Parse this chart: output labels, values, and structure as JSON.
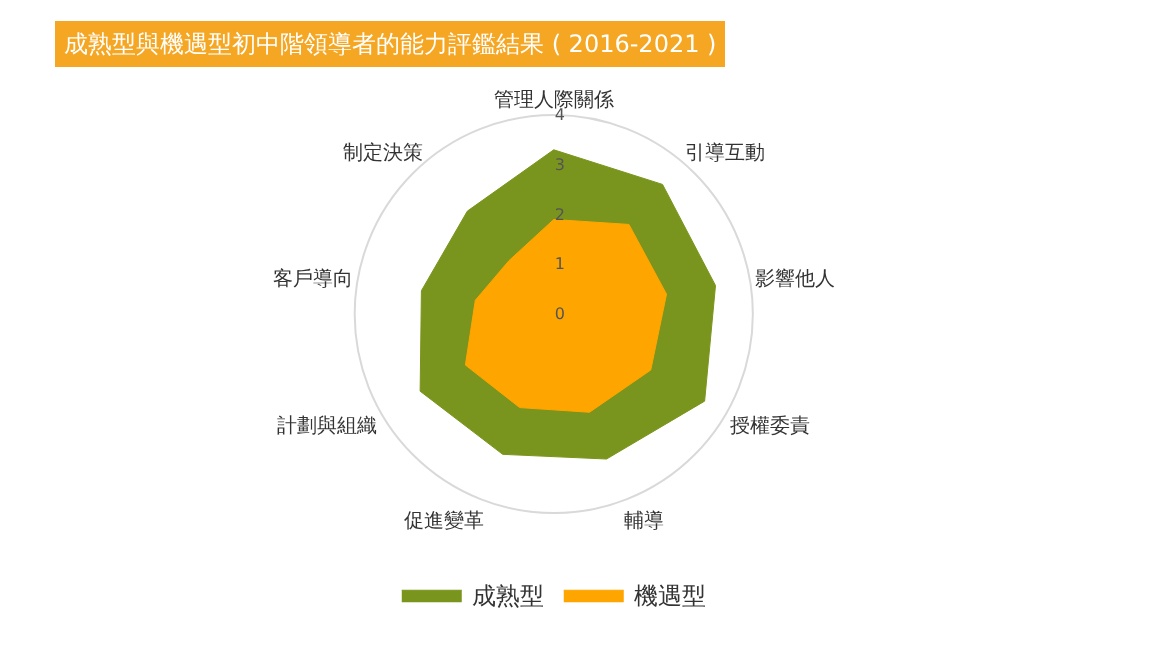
{
  "chart_data": {
    "type": "radar",
    "title": "成熟型與機遇型初中階領導者的能力評鑑結果 ( 2016-2021 )",
    "categories": [
      "管理人際關係",
      "引導互動",
      "影響他人",
      "授權委責",
      "輔導",
      "促進變革",
      "計劃與組織",
      "客戶導向",
      "制定決策"
    ],
    "series": [
      {
        "name": "成熟型",
        "color": "#7a951d",
        "values": [
          3.3,
          3.4,
          3.3,
          3.5,
          3.1,
          3.0,
          3.1,
          2.7,
          2.7
        ]
      },
      {
        "name": "機遇型",
        "color": "#ffa500",
        "values": [
          1.9,
          2.35,
          2.3,
          2.25,
          2.1,
          2.0,
          2.05,
          1.6,
          1.4
        ]
      }
    ],
    "ylim": [
      0,
      4
    ],
    "yticks": [
      0,
      1,
      2,
      3,
      4
    ],
    "grid": false,
    "legend": "bottom",
    "marker": "none"
  }
}
